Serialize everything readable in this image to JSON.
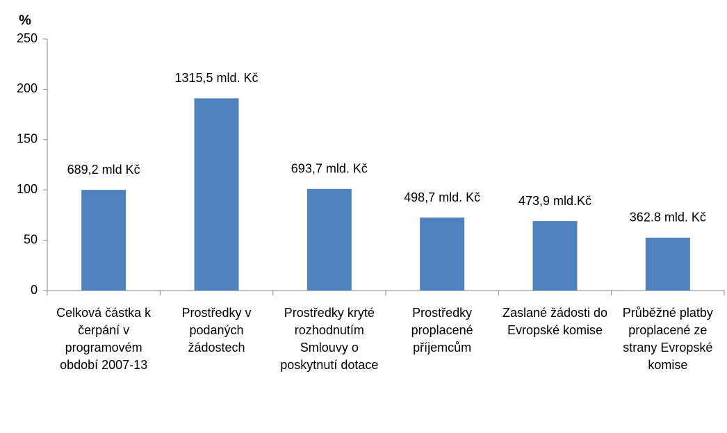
{
  "chart_data": {
    "type": "bar",
    "y_label": "%",
    "categories": [
      "Celková částka k čerpání v programovém období 2007-13",
      "Prostředky v podaných žádostech",
      "Prostředky kryté rozhodnutím Smlouvy o poskytnutí dotace",
      "Prostředky proplacené příjemcům",
      "Zaslané žádosti do Evropské komise",
      "Průběžné platby proplacené ze strany Evropské komise"
    ],
    "values": [
      100,
      191,
      101,
      72.5,
      69,
      52.5
    ],
    "annotations": [
      "689,2 mld Kč",
      "1315,5 mld. Kč",
      "693,7 mld. Kč",
      "498,7 mld. Kč",
      "473,9 mld.Kč",
      "362.8 mld. Kč"
    ],
    "color": "#4f81bd",
    "ylim": [
      0,
      250
    ],
    "yticks": [
      0,
      50,
      100,
      150,
      200,
      250
    ],
    "grid": false
  }
}
